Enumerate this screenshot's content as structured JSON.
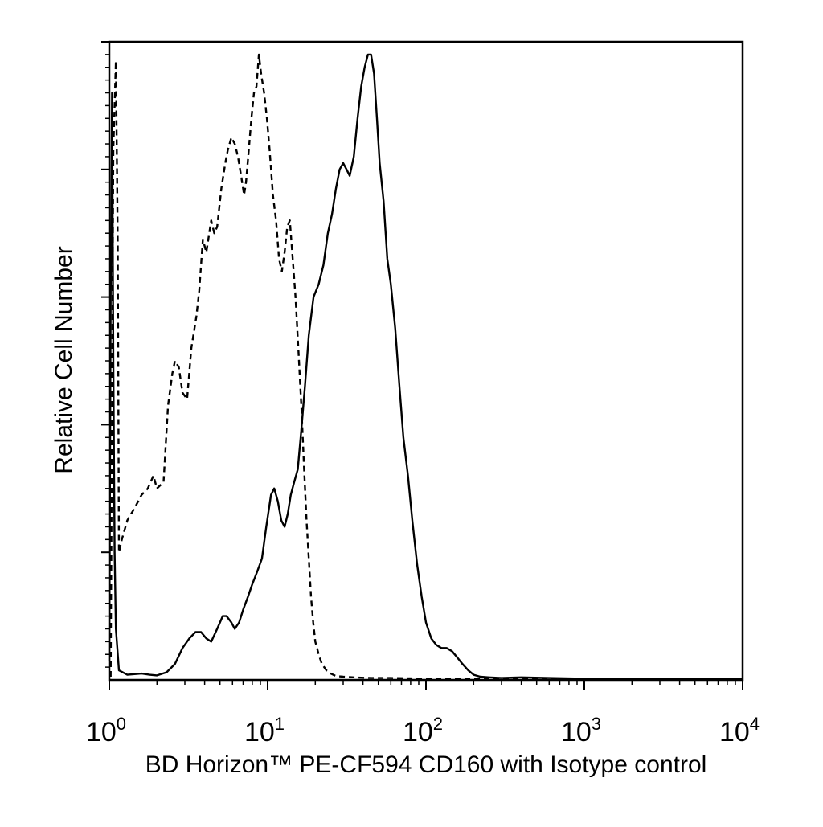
{
  "chart_data": {
    "type": "line",
    "xlabel": "BD Horizon™ PE-CF594 CD160 with Isotype control",
    "ylabel": "Relative Cell Number",
    "x_scale": "log",
    "xlim": [
      1,
      10000
    ],
    "ylim": [
      0,
      100
    ],
    "grid": false,
    "x_ticks": [
      {
        "value": 1,
        "base": "10",
        "exp": "0"
      },
      {
        "value": 10,
        "base": "10",
        "exp": "1"
      },
      {
        "value": 100,
        "base": "10",
        "exp": "2"
      },
      {
        "value": 1000,
        "base": "10",
        "exp": "3"
      },
      {
        "value": 10000,
        "base": "10",
        "exp": "4"
      }
    ],
    "series": [
      {
        "style": "dashed",
        "x": [
          1.02,
          1.06,
          1.1,
          1.13,
          1.15,
          1.2,
          1.3,
          1.45,
          1.6,
          1.75,
          1.9,
          2.0,
          2.2,
          2.35,
          2.5,
          2.6,
          2.75,
          2.9,
          3.1,
          3.3,
          3.55,
          3.7,
          3.9,
          4.1,
          4.4,
          4.6,
          4.8,
          5.1,
          5.4,
          5.6,
          5.9,
          6.2,
          6.5,
          6.8,
          7.1,
          7.3,
          7.6,
          7.9,
          8.2,
          8.5,
          8.8,
          9.1,
          9.5,
          9.9,
          10.3,
          10.8,
          11.3,
          11.8,
          12.3,
          12.8,
          13.3,
          13.8,
          14.3,
          15.0,
          15.7,
          16.4,
          17.0,
          17.6,
          18.2,
          18.8,
          19.4,
          20.0,
          21.0,
          22.0,
          23.5,
          25.0,
          27.0,
          30.0,
          35.0,
          45.0,
          60.0,
          100.0,
          200.0,
          400.0,
          1000.0,
          3000.0,
          10000.0
        ],
        "y": [
          0.5,
          83,
          97,
          68,
          20,
          22,
          25,
          27,
          29,
          30,
          32,
          30,
          31,
          43,
          48,
          50,
          49,
          45,
          44,
          52,
          57,
          61,
          69,
          67,
          72,
          70,
          71,
          77,
          81,
          83,
          85,
          84,
          82,
          79,
          76,
          78,
          83,
          88,
          92,
          93,
          98,
          95,
          92,
          88,
          83,
          76,
          72,
          66,
          64,
          67,
          71,
          72,
          67,
          60,
          51,
          42,
          33,
          25,
          19,
          13,
          9,
          6,
          4,
          2.5,
          1.5,
          1,
          0.6,
          0.5,
          0.4,
          0.3,
          0.3,
          0.2,
          0.2,
          0.2,
          0.2,
          0.2,
          0.2
        ]
      },
      {
        "style": "solid",
        "x": [
          1.0,
          1.02,
          1.04,
          1.06,
          1.08,
          1.1,
          1.15,
          1.3,
          1.6,
          1.8,
          2.0,
          2.3,
          2.6,
          2.9,
          3.2,
          3.5,
          3.8,
          4.1,
          4.4,
          4.8,
          5.2,
          5.5,
          5.9,
          6.2,
          6.6,
          7.0,
          7.5,
          8.0,
          8.6,
          9.2,
          9.8,
          10.5,
          11.0,
          11.6,
          12.2,
          12.8,
          13.4,
          14.0,
          14.7,
          15.5,
          16.3,
          17.2,
          18.2,
          19.5,
          21.0,
          22.5,
          24.0,
          25.5,
          27.0,
          28.5,
          30.0,
          31.5,
          33.0,
          35.0,
          37.0,
          39.0,
          41.0,
          43.0,
          45.0,
          47.0,
          49.0,
          51.0,
          54.0,
          57.0,
          60.0,
          64.0,
          68.0,
          72.0,
          77.0,
          82.0,
          88.0,
          94.0,
          100.0,
          108.0,
          116.0,
          125.0,
          135.0,
          146.0,
          158.0,
          170.0,
          185.0,
          200.0,
          220.0,
          250.0,
          300.0,
          400.0,
          600.0,
          1000.0,
          3000.0,
          10000.0
        ],
        "y": [
          3,
          60,
          92,
          50,
          20,
          8,
          1.5,
          0.8,
          1,
          0.8,
          0.7,
          1.2,
          2.5,
          5,
          6.5,
          7.5,
          7.5,
          6.5,
          6,
          8,
          10,
          10,
          9,
          8,
          9,
          11,
          13,
          15,
          17,
          19,
          24,
          29,
          30,
          28,
          25,
          24,
          26,
          29,
          31,
          33,
          39,
          46,
          54,
          60,
          62,
          65,
          70,
          73,
          77,
          80,
          81,
          80,
          79,
          82,
          88,
          93,
          96,
          98,
          98,
          95,
          88,
          81,
          75,
          66,
          62,
          55,
          46,
          38,
          32,
          25,
          18,
          13,
          9,
          6.5,
          5.5,
          5,
          5,
          4.5,
          3.5,
          2.5,
          1.5,
          0.8,
          0.5,
          0.4,
          0.3,
          0.4,
          0.3,
          0.2,
          0.2,
          0.2
        ]
      }
    ]
  }
}
